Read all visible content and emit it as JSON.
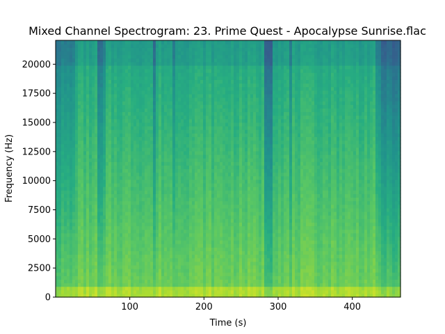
{
  "chart_data": {
    "type": "heatmap",
    "title": "Mixed Channel Spectrogram: 23. Prime Quest - Apocalypse Sunrise.flac",
    "xlabel": "Time (s)",
    "ylabel": "Frequency (Hz)",
    "xlim": [
      0,
      465
    ],
    "ylim": [
      0,
      22050
    ],
    "xticks": [
      100,
      200,
      300,
      400
    ],
    "yticks": [
      0,
      2500,
      5000,
      7500,
      10000,
      12500,
      15000,
      17500,
      20000
    ],
    "colormap": "viridis",
    "grid": false,
    "dark_time_bands": [
      {
        "start": 0,
        "end": 25,
        "strength": 0.55
      },
      {
        "start": 55,
        "end": 62,
        "strength": 0.8
      },
      {
        "start": 62,
        "end": 68,
        "strength": 0.55
      },
      {
        "start": 130,
        "end": 135,
        "strength": 0.85
      },
      {
        "start": 158,
        "end": 162,
        "strength": 0.6
      },
      {
        "start": 280,
        "end": 292,
        "strength": 0.95
      },
      {
        "start": 314,
        "end": 319,
        "strength": 0.55
      },
      {
        "start": 430,
        "end": 440,
        "strength": 0.6
      },
      {
        "start": 440,
        "end": 465,
        "strength": 0.9
      }
    ]
  }
}
